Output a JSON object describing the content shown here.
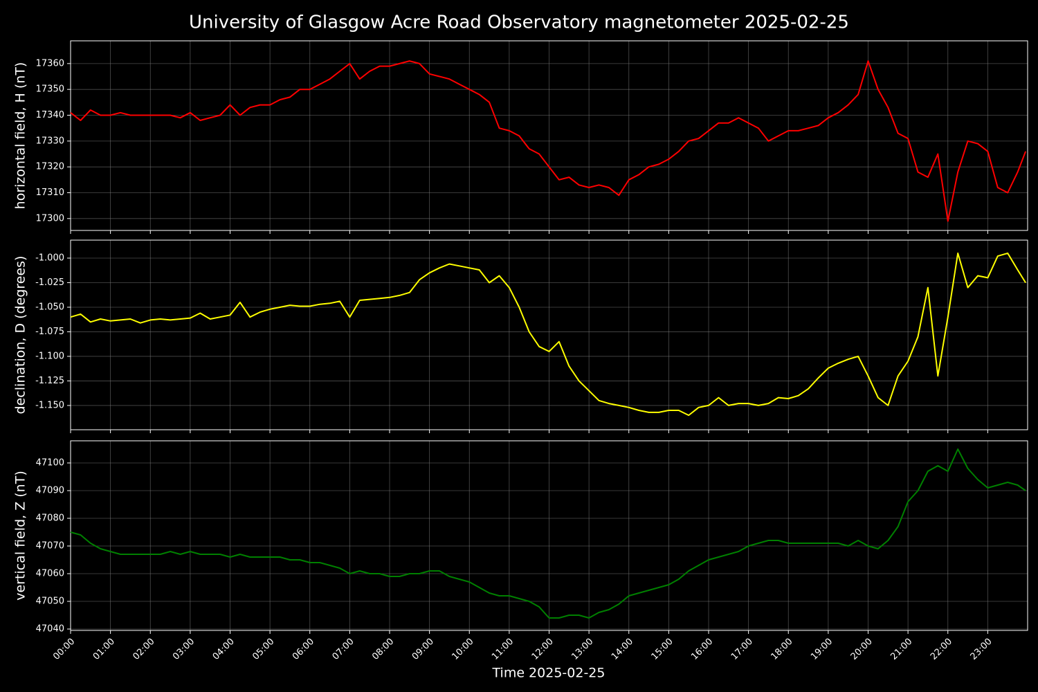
{
  "title": "University of Glasgow Acre Road Observatory magnetometer 2025-02-25",
  "x_label": "Time 2025-02-25",
  "chart_data": [
    {
      "type": "line",
      "ylabel": "horizontal field, H (nT)",
      "color": "#ff0000",
      "xlim": [
        0,
        24
      ],
      "ylim": [
        17295.4,
        17368.8
      ],
      "yticks": [
        17300,
        17310,
        17320,
        17330,
        17340,
        17350,
        17360
      ],
      "xticks": [
        0,
        1,
        2,
        3,
        4,
        5,
        6,
        7,
        8,
        9,
        10,
        11,
        12,
        13,
        14,
        15,
        16,
        17,
        18,
        19,
        20,
        21,
        22,
        23
      ],
      "grid": true,
      "x": [
        0,
        0.25,
        0.5,
        0.75,
        1,
        1.25,
        1.5,
        1.75,
        2,
        2.25,
        2.5,
        2.75,
        3,
        3.25,
        3.5,
        3.75,
        4,
        4.25,
        4.5,
        4.75,
        5,
        5.25,
        5.5,
        5.75,
        6,
        6.25,
        6.5,
        6.75,
        7,
        7.25,
        7.5,
        7.75,
        8,
        8.25,
        8.5,
        8.75,
        9,
        9.25,
        9.5,
        9.75,
        10,
        10.25,
        10.5,
        10.75,
        11,
        11.25,
        11.5,
        11.75,
        12,
        12.25,
        12.5,
        12.75,
        13,
        13.25,
        13.5,
        13.75,
        14,
        14.25,
        14.5,
        14.75,
        15,
        15.25,
        15.5,
        15.75,
        16,
        16.25,
        16.5,
        16.75,
        17,
        17.25,
        17.5,
        17.75,
        18,
        18.25,
        18.5,
        18.75,
        19,
        19.25,
        19.5,
        19.75,
        20,
        20.25,
        20.5,
        20.75,
        21,
        21.25,
        21.5,
        21.75,
        22,
        22.25,
        22.5,
        22.75,
        23,
        23.25,
        23.5,
        23.75,
        23.95
      ],
      "values": [
        17341,
        17338,
        17342,
        17340,
        17340,
        17341,
        17340,
        17340,
        17340,
        17340,
        17340,
        17339,
        17341,
        17338,
        17339,
        17340,
        17344,
        17340,
        17343,
        17344,
        17344,
        17346,
        17347,
        17350,
        17350,
        17352,
        17354,
        17357,
        17360,
        17354,
        17357,
        17359,
        17359,
        17360,
        17361,
        17360,
        17356,
        17355,
        17354,
        17352,
        17350,
        17348,
        17345,
        17335,
        17334,
        17332,
        17327,
        17325,
        17320,
        17315,
        17316,
        17313,
        17312,
        17313,
        17312,
        17309,
        17315,
        17317,
        17320,
        17321,
        17323,
        17326,
        17330,
        17331,
        17334,
        17337,
        17337,
        17339,
        17337,
        17335,
        17330,
        17332,
        17334,
        17334,
        17335,
        17336,
        17339,
        17341,
        17344,
        17348,
        17361,
        17350,
        17343,
        17333,
        17331,
        17318,
        17316,
        17325,
        17299,
        17318,
        17330,
        17329,
        17326,
        17312,
        17310,
        17318,
        17326
      ]
    },
    {
      "type": "line",
      "ylabel": "declination, D (degrees)",
      "color": "#ffff00",
      "xlim": [
        0,
        24
      ],
      "ylim": [
        -1.1747,
        -0.9817
      ],
      "yticks": [
        {
          "value": -1.15,
          "label": "-1.150"
        },
        -1.125,
        {
          "value": -1.1,
          "label": "-1.100"
        },
        -1.075,
        {
          "value": -1.05,
          "label": "-1.050"
        },
        -1.025,
        {
          "value": -1,
          "label": "-1.000"
        }
      ],
      "xticks": [
        0,
        1,
        2,
        3,
        4,
        5,
        6,
        7,
        8,
        9,
        10,
        11,
        12,
        13,
        14,
        15,
        16,
        17,
        18,
        19,
        20,
        21,
        22,
        23
      ],
      "grid": true,
      "x": [
        0,
        0.25,
        0.5,
        0.75,
        1,
        1.25,
        1.5,
        1.75,
        2,
        2.25,
        2.5,
        2.75,
        3,
        3.25,
        3.5,
        3.75,
        4,
        4.25,
        4.5,
        4.75,
        5,
        5.25,
        5.5,
        5.75,
        6,
        6.25,
        6.5,
        6.75,
        7,
        7.25,
        7.5,
        7.75,
        8,
        8.25,
        8.5,
        8.75,
        9,
        9.25,
        9.5,
        9.75,
        10,
        10.25,
        10.5,
        10.75,
        11,
        11.25,
        11.5,
        11.75,
        12,
        12.25,
        12.5,
        12.75,
        13,
        13.25,
        13.5,
        13.75,
        14,
        14.25,
        14.5,
        14.75,
        15,
        15.25,
        15.5,
        15.75,
        16,
        16.25,
        16.5,
        16.75,
        17,
        17.25,
        17.5,
        17.75,
        18,
        18.25,
        18.5,
        18.75,
        19,
        19.25,
        19.5,
        19.75,
        20,
        20.25,
        20.5,
        20.75,
        21,
        21.25,
        21.5,
        21.75,
        22,
        22.25,
        22.5,
        22.75,
        23,
        23.25,
        23.5,
        23.75,
        23.95
      ],
      "values": [
        -1.06,
        -1.057,
        -1.065,
        -1.062,
        -1.064,
        -1.063,
        -1.062,
        -1.066,
        -1.063,
        -1.062,
        -1.063,
        -1.062,
        -1.061,
        -1.056,
        -1.062,
        -1.06,
        -1.058,
        -1.045,
        -1.06,
        -1.055,
        -1.052,
        -1.05,
        -1.048,
        -1.049,
        -1.049,
        -1.047,
        -1.046,
        -1.044,
        -1.06,
        -1.043,
        -1.042,
        -1.041,
        -1.04,
        -1.038,
        -1.035,
        -1.022,
        -1.015,
        -1.01,
        -1.006,
        -1.008,
        -1.01,
        -1.012,
        -1.025,
        -1.018,
        -1.03,
        -1.05,
        -1.075,
        -1.09,
        -1.095,
        -1.085,
        -1.11,
        -1.125,
        -1.135,
        -1.145,
        -1.148,
        -1.15,
        -1.152,
        -1.155,
        -1.157,
        -1.157,
        -1.155,
        -1.155,
        -1.16,
        -1.152,
        -1.15,
        -1.142,
        -1.15,
        -1.148,
        -1.148,
        -1.15,
        -1.148,
        -1.142,
        -1.143,
        -1.14,
        -1.133,
        -1.122,
        -1.112,
        -1.107,
        -1.103,
        -1.1,
        -1.12,
        -1.142,
        -1.15,
        -1.12,
        -1.105,
        -1.08,
        -1.03,
        -1.12,
        -1.06,
        -0.995,
        -1.03,
        -1.018,
        -1.02,
        -0.998,
        -0.995,
        -1.012,
        -1.025
      ]
    },
    {
      "type": "line",
      "ylabel": "vertical field, Z (nT)",
      "color": "#008000",
      "xlim": [
        0,
        24
      ],
      "ylim": [
        47039.5,
        47108
      ],
      "yticks": [
        47040,
        47050,
        47060,
        47070,
        47080,
        47090,
        47100
      ],
      "xticks": [
        {
          "value": 0,
          "label": "00:00"
        },
        {
          "value": 1,
          "label": "01:00"
        },
        {
          "value": 2,
          "label": "02:00"
        },
        {
          "value": 3,
          "label": "03:00"
        },
        {
          "value": 4,
          "label": "04:00"
        },
        {
          "value": 5,
          "label": "05:00"
        },
        {
          "value": 6,
          "label": "06:00"
        },
        {
          "value": 7,
          "label": "07:00"
        },
        {
          "value": 8,
          "label": "08:00"
        },
        {
          "value": 9,
          "label": "09:00"
        },
        {
          "value": 10,
          "label": "10:00"
        },
        {
          "value": 11,
          "label": "11:00"
        },
        {
          "value": 12,
          "label": "12:00"
        },
        {
          "value": 13,
          "label": "13:00"
        },
        {
          "value": 14,
          "label": "14:00"
        },
        {
          "value": 15,
          "label": "15:00"
        },
        {
          "value": 16,
          "label": "16:00"
        },
        {
          "value": 17,
          "label": "17:00"
        },
        {
          "value": 18,
          "label": "18:00"
        },
        {
          "value": 19,
          "label": "19:00"
        },
        {
          "value": 20,
          "label": "20:00"
        },
        {
          "value": 21,
          "label": "21:00"
        },
        {
          "value": 22,
          "label": "22:00"
        },
        {
          "value": 23,
          "label": "23:00"
        }
      ],
      "grid": true,
      "x": [
        0,
        0.25,
        0.5,
        0.75,
        1,
        1.25,
        1.5,
        1.75,
        2,
        2.25,
        2.5,
        2.75,
        3,
        3.25,
        3.5,
        3.75,
        4,
        4.25,
        4.5,
        4.75,
        5,
        5.25,
        5.5,
        5.75,
        6,
        6.25,
        6.5,
        6.75,
        7,
        7.25,
        7.5,
        7.75,
        8,
        8.25,
        8.5,
        8.75,
        9,
        9.25,
        9.5,
        9.75,
        10,
        10.25,
        10.5,
        10.75,
        11,
        11.25,
        11.5,
        11.75,
        12,
        12.25,
        12.5,
        12.75,
        13,
        13.25,
        13.5,
        13.75,
        14,
        14.25,
        14.5,
        14.75,
        15,
        15.25,
        15.5,
        15.75,
        16,
        16.25,
        16.5,
        16.75,
        17,
        17.25,
        17.5,
        17.75,
        18,
        18.25,
        18.5,
        18.75,
        19,
        19.25,
        19.5,
        19.75,
        20,
        20.25,
        20.5,
        20.75,
        21,
        21.25,
        21.5,
        21.75,
        22,
        22.25,
        22.5,
        22.75,
        23,
        23.25,
        23.5,
        23.75,
        23.95
      ],
      "values": [
        47075,
        47074,
        47071,
        47069,
        47068,
        47067,
        47067,
        47067,
        47067,
        47067,
        47068,
        47067,
        47068,
        47067,
        47067,
        47067,
        47066,
        47067,
        47066,
        47066,
        47066,
        47066,
        47065,
        47065,
        47064,
        47064,
        47063,
        47062,
        47060,
        47061,
        47060,
        47060,
        47059,
        47059,
        47060,
        47060,
        47061,
        47061,
        47059,
        47058,
        47057,
        47055,
        47053,
        47052,
        47052,
        47051,
        47050,
        47048,
        47044,
        47044,
        47045,
        47045,
        47044,
        47046,
        47047,
        47049,
        47052,
        47053,
        47054,
        47055,
        47056,
        47058,
        47061,
        47063,
        47065,
        47066,
        47067,
        47068,
        47070,
        47071,
        47072,
        47072,
        47071,
        47071,
        47071,
        47071,
        47071,
        47071,
        47070,
        47072,
        47070,
        47069,
        47072,
        47077,
        47086,
        47090,
        47097,
        47099,
        47097,
        47105,
        47098,
        47094,
        47091,
        47092,
        47093,
        47092,
        47090
      ]
    }
  ]
}
